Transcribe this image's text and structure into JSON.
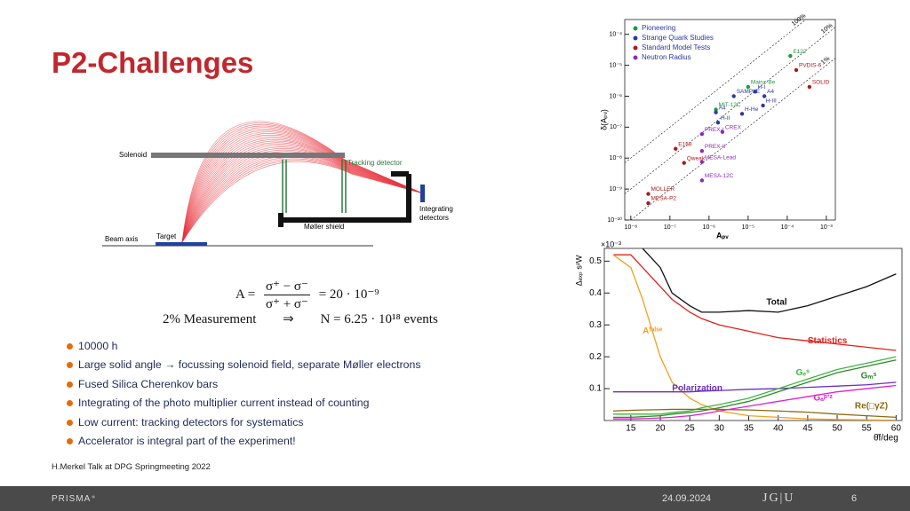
{
  "header": {
    "title": "P2-Challenges"
  },
  "diagram": {
    "solenoid": "Solenoid",
    "tracking": "Tracking detector",
    "integrating_1": "Integrating",
    "integrating_2": "detectors",
    "shield": "Møller shield",
    "target": "Target",
    "beam": "Beam axis"
  },
  "equations": {
    "asym_lhs": "A =",
    "asym_num": "σ⁺ − σ⁻",
    "asym_den": "σ⁺ + σ⁻",
    "asym_rhs": "=  20 · 10⁻⁹",
    "meas_lhs": "2% Measurement",
    "meas_arrow": "⇒",
    "meas_rhs": "N  =  6.25 · 10¹⁸ events"
  },
  "bullets": [
    "10000 h",
    "Large solid angle → focussing solenoid field, separate Møller electrons",
    "Fused Silica Cherenkov bars",
    "Integrating of the photo multiplier current instead of counting",
    "Low current: tracking detectors for systematics",
    "Accelerator is integral part of the experiment!"
  ],
  "citation": "H.Merkel Talk at DPG Springmeeting 2022",
  "footer": {
    "logo": "PRISMA⁺",
    "date": "24.09.2024",
    "university": "JG|U",
    "page": "6"
  },
  "chart_data": [
    {
      "type": "scatter",
      "log_x": true,
      "log_y": true,
      "ylabel": "δ(Aₚᵥ)",
      "xlabel": "Aₚᵥ",
      "xlim": [
        7e-09,
        0.0017
      ],
      "ylim": [
        1e-10,
        0.0003
      ],
      "xticks": [
        {
          "value": 1e-08,
          "label": "10⁻⁸"
        },
        {
          "value": 1e-07,
          "label": "10⁻⁷"
        },
        {
          "value": 1e-06,
          "label": "10⁻⁶"
        },
        {
          "value": 1e-05,
          "label": "10⁻⁵"
        },
        {
          "value": 0.0001,
          "label": "10⁻⁴"
        },
        {
          "value": 0.001,
          "label": "10⁻³"
        }
      ],
      "yticks": [
        {
          "value": 1e-10,
          "label": "10⁻¹⁰"
        },
        {
          "value": 1e-09,
          "label": "10⁻⁹"
        },
        {
          "value": 1e-08,
          "label": "10⁻⁸"
        },
        {
          "value": 1e-07,
          "label": "10⁻⁷"
        },
        {
          "value": 1e-06,
          "label": "10⁻⁶"
        },
        {
          "value": 1e-05,
          "label": "10⁻⁵"
        },
        {
          "value": 0.0001,
          "label": "10⁻⁴"
        }
      ],
      "ratio_lines": [
        {
          "value": 1,
          "label": "100%"
        },
        {
          "value": 0.1,
          "label": "10%"
        },
        {
          "value": 0.01,
          "label": "1%"
        }
      ],
      "series": [
        {
          "name": "Pioneering",
          "color": "#1f9a3a",
          "labels": [
            "E122",
            "Mainz-Be",
            "MIT-12C"
          ],
          "x": [
            0.00012,
            1e-05,
            1.5e-06
          ],
          "values": [
            2e-05,
            2e-06,
            3.7e-07
          ]
        },
        {
          "name": "Strange Quark Studies",
          "color": "#2b3a9e",
          "labels": [
            "SAMPLE",
            "H-I",
            "A4",
            "A4",
            "H-III",
            "H-He",
            "H-II"
          ],
          "x": [
            4.3e-06,
            1.5e-05,
            2.6e-05,
            1.5e-06,
            2.4e-05,
            7e-06,
            1.7e-06
          ],
          "values": [
            1e-06,
            1.4e-06,
            1e-06,
            3e-07,
            5e-07,
            2.7e-07,
            1.4e-07
          ]
        },
        {
          "name": "Standard Model Tests",
          "color": "#a81b1b",
          "labels": [
            "PVDIS-6",
            "SOLID",
            "E158",
            "Qweak",
            "MOLLER",
            "MESA-P2"
          ],
          "x": [
            0.00017,
            0.00037,
            1.4e-07,
            2.3e-07,
            2.8e-08,
            2.8e-08
          ],
          "values": [
            7e-06,
            2e-06,
            2e-08,
            7e-09,
            7e-10,
            3.5e-10
          ]
        },
        {
          "name": "Neutron Radius",
          "color": "#8e2bb5",
          "labels": [
            "PREX-I",
            "CREX",
            "PREX-II",
            "MESA-Lead",
            "MESA-12C"
          ],
          "x": [
            6.6e-07,
            2.2e-06,
            6.6e-07,
            6.6e-07,
            6.6e-07
          ],
          "values": [
            6e-08,
            7e-08,
            1.7e-08,
            7.5e-09,
            1.9e-09
          ]
        }
      ]
    },
    {
      "type": "line",
      "multiplier": "×10⁻³",
      "ylabel": "Δₑₓₚ s²W",
      "xlabel": "θ̄f/deg",
      "xlim": [
        10.5,
        61
      ],
      "ylim": [
        0,
        0.54
      ],
      "xticks": [
        15,
        20,
        25,
        30,
        35,
        40,
        45,
        50,
        55,
        60
      ],
      "yticks": [
        0.1,
        0.2,
        0.3,
        0.4,
        0.5
      ],
      "x": [
        12,
        15,
        17,
        20,
        22,
        25,
        27,
        30,
        35,
        40,
        45,
        50,
        55,
        60
      ],
      "series": [
        {
          "name": "Total",
          "color": "#111111",
          "values": [
            null,
            null,
            0.54,
            0.48,
            0.4,
            0.36,
            0.34,
            0.34,
            0.345,
            0.34,
            0.36,
            0.39,
            0.42,
            0.46
          ]
        },
        {
          "name": "Statistics",
          "color": "#e0201b",
          "values": [
            0.52,
            0.52,
            0.48,
            0.42,
            0.38,
            0.34,
            0.32,
            0.3,
            0.28,
            0.26,
            0.25,
            0.24,
            0.23,
            0.22
          ]
        },
        {
          "name": "Aᶠᵃˡˢᵉ",
          "color": "#f0a020",
          "values": [
            0.52,
            0.48,
            0.38,
            0.2,
            0.12,
            0.07,
            0.05,
            0.03,
            0.015,
            0.01,
            0.005,
            0.003,
            0.002,
            0.001
          ]
        },
        {
          "name": "Polarization",
          "color": "#6a2fc0",
          "values": [
            0.09,
            0.09,
            0.09,
            0.09,
            0.09,
            0.09,
            0.092,
            0.094,
            0.098,
            0.1,
            0.104,
            0.108,
            0.112,
            0.12
          ]
        },
        {
          "name": "Gₑˢ",
          "color": "#3cb83c",
          "values": [
            0.02,
            0.02,
            0.02,
            0.02,
            0.025,
            0.03,
            0.04,
            0.05,
            0.07,
            0.1,
            0.13,
            0.16,
            0.18,
            0.2
          ]
        },
        {
          "name": "Gₘˢ",
          "color": "#2e8b2e",
          "values": [
            0.01,
            0.01,
            0.012,
            0.015,
            0.02,
            0.025,
            0.03,
            0.04,
            0.06,
            0.09,
            0.12,
            0.15,
            0.17,
            0.19
          ]
        },
        {
          "name": "Gₐᵖ'ᶻ",
          "color": "#e020d0",
          "values": [
            0.005,
            0.005,
            0.006,
            0.008,
            0.01,
            0.015,
            0.02,
            0.03,
            0.045,
            0.06,
            0.075,
            0.09,
            0.1,
            0.11
          ]
        },
        {
          "name": "Re(□γZ)",
          "color": "#8b6a10",
          "values": [
            0.03,
            0.032,
            0.033,
            0.034,
            0.035,
            0.035,
            0.035,
            0.035,
            0.033,
            0.03,
            0.026,
            0.02,
            0.015,
            0.01
          ]
        }
      ]
    }
  ]
}
